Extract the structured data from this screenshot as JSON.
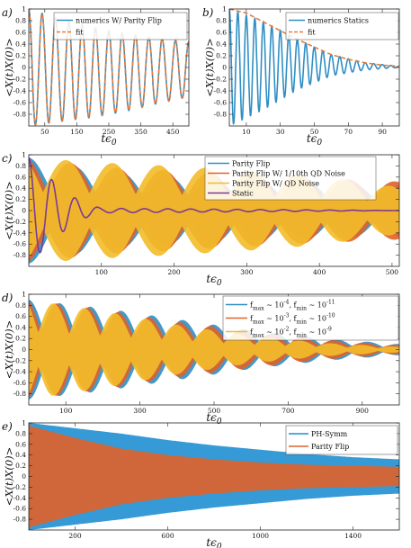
{
  "chart_data": [
    {
      "id": "a",
      "panel_label": "a)",
      "type": "line",
      "xlabel": "tϵ0",
      "ylabel": "<X(t)X(0)>",
      "xlim": [
        0,
        500
      ],
      "ylim": [
        -1,
        1
      ],
      "xticks": [
        50,
        150,
        250,
        350,
        450
      ],
      "yticks": [
        -0.8,
        -0.6,
        -0.4,
        -0.2,
        0,
        0.2,
        0.4,
        0.6,
        0.8,
        1
      ],
      "legend_position": "top-right",
      "series": [
        {
          "name": "numerics W/ Parity Flip",
          "color": "#2f8fc4",
          "style": "solid",
          "oscillations": 12,
          "envelope": {
            "x": [
              0,
              100,
              200,
              300,
              400,
              500
            ],
            "upper": [
              1.0,
              0.82,
              0.68,
              0.58,
              0.5,
              0.44
            ],
            "lower": [
              -1.0,
              -0.92,
              -0.85,
              -0.75,
              -0.62,
              -0.5
            ]
          }
        },
        {
          "name": "fit",
          "color": "#e87b3a",
          "style": "dashed",
          "oscillations": 12,
          "envelope": {
            "x": [
              0,
              100,
              200,
              300,
              400,
              500
            ],
            "upper": [
              1.0,
              0.82,
              0.68,
              0.58,
              0.5,
              0.44
            ],
            "lower": [
              -1.0,
              -0.92,
              -0.85,
              -0.75,
              -0.62,
              -0.5
            ]
          }
        }
      ]
    },
    {
      "id": "b",
      "panel_label": "b)",
      "type": "line",
      "xlabel": "tϵ0",
      "ylabel": "<X(t)X(0)>",
      "xlim": [
        0,
        100
      ],
      "ylim": [
        -1,
        1
      ],
      "xticks": [
        10,
        30,
        50,
        70,
        90
      ],
      "yticks": [
        -0.8,
        -0.6,
        -0.4,
        -0.2,
        0,
        0.2,
        0.4,
        0.6,
        0.8,
        1
      ],
      "legend_position": "top-right",
      "series": [
        {
          "name": "numerics Statics",
          "color": "#2f8fc4",
          "style": "solid",
          "oscillations": 20,
          "envelope": {
            "x": [
              0,
              20,
              40,
              60,
              80,
              100
            ],
            "upper": [
              1.0,
              0.78,
              0.48,
              0.22,
              0.08,
              0.02
            ],
            "lower": [
              -1.0,
              -0.72,
              -0.38,
              -0.14,
              -0.04,
              0.0
            ]
          }
        },
        {
          "name": "fit",
          "color": "#e87b3a",
          "style": "dashed",
          "curve": "envelope",
          "x": [
            0,
            10,
            20,
            30,
            40,
            50,
            60,
            70,
            80,
            90,
            100
          ],
          "values": [
            1.0,
            0.93,
            0.78,
            0.63,
            0.48,
            0.35,
            0.22,
            0.14,
            0.08,
            0.04,
            0.02
          ]
        }
      ]
    },
    {
      "id": "c",
      "panel_label": "c)",
      "type": "line",
      "xlabel": "tϵ0",
      "ylabel": "<X(t)X(0)>",
      "xlim": [
        0,
        510
      ],
      "ylim": [
        -1,
        1
      ],
      "xticks": [
        100,
        200,
        300,
        400,
        500
      ],
      "yticks": [
        -0.8,
        -0.6,
        -0.4,
        -0.2,
        0,
        0.2,
        0.4,
        0.6,
        0.8,
        1
      ],
      "legend_position": "top-right",
      "series": [
        {
          "name": "Parity Flip",
          "color": "#2f8fc4",
          "style": "band",
          "beats": 8,
          "envelope": {
            "x": [
              0,
              100,
              200,
              300,
              400,
              510
            ],
            "amp": [
              0.95,
              0.7,
              0.62,
              0.55,
              0.5,
              0.45
            ]
          }
        },
        {
          "name": "Parity Flip W/ 1/10th QD Noise",
          "color": "#e0622a",
          "style": "band",
          "beats": 8,
          "envelope": {
            "x": [
              0,
              100,
              200,
              300,
              400,
              510
            ],
            "amp": [
              0.95,
              0.78,
              0.72,
              0.65,
              0.58,
              0.52
            ]
          }
        },
        {
          "name": "Parity Flip W/ QD Noise",
          "color": "#f2bd2a",
          "style": "band",
          "beats": 8,
          "envelope": {
            "x": [
              0,
              100,
              200,
              300,
              400,
              510
            ],
            "amp": [
              0.95,
              0.86,
              0.8,
              0.72,
              0.62,
              0.42
            ]
          }
        },
        {
          "name": "Static",
          "color": "#7b3b96",
          "style": "solid",
          "oscillations": 16,
          "envelope": {
            "x": [
              0,
              20,
              40,
              60,
              80,
              100,
              510
            ],
            "amp": [
              0.95,
              0.7,
              0.45,
              0.25,
              0.12,
              0.04,
              0.0
            ]
          }
        }
      ]
    },
    {
      "id": "d",
      "panel_label": "d)",
      "type": "line",
      "xlabel": "tϵ0",
      "ylabel": "<X(t)X(0)>",
      "xlim": [
        0,
        1000
      ],
      "ylim": [
        -1,
        1
      ],
      "xticks": [
        100,
        300,
        500,
        700,
        900
      ],
      "yticks": [
        -0.8,
        -0.6,
        -0.4,
        -0.2,
        0,
        0.2,
        0.4,
        0.6,
        0.8,
        1
      ],
      "legend_position": "top-right",
      "series": [
        {
          "name": "f_max ~ 10^-4, f_min ~ 10^-11",
          "color": "#2f8fc4",
          "style": "band",
          "beats": 12,
          "envelope": {
            "x": [
              0,
              200,
              400,
              600,
              800,
              1000
            ],
            "amp": [
              0.9,
              0.75,
              0.55,
              0.35,
              0.2,
              0.1
            ]
          }
        },
        {
          "name": "f_max ~ 10^-3, f_min ~ 10^-10",
          "color": "#e0622a",
          "style": "band",
          "beats": 12,
          "envelope": {
            "x": [
              0,
              200,
              400,
              600,
              800,
              1000
            ],
            "amp": [
              0.9,
              0.72,
              0.5,
              0.33,
              0.18,
              0.08
            ]
          }
        },
        {
          "name": "f_max ~ 10^-2, f_min ~ 10^-9",
          "color": "#f2bd2a",
          "style": "band",
          "beats": 12,
          "envelope": {
            "x": [
              0,
              200,
              400,
              600,
              800,
              1000
            ],
            "amp": [
              0.9,
              0.7,
              0.45,
              0.25,
              0.12,
              0.05
            ]
          }
        }
      ]
    },
    {
      "id": "e",
      "panel_label": "e)",
      "type": "line",
      "xlabel": "tϵ0",
      "ylabel": "<X(t)X(0)>",
      "xlim": [
        0,
        1600
      ],
      "ylim": [
        -1,
        1
      ],
      "xticks": [
        200,
        600,
        1000,
        1400
      ],
      "yticks": [
        -0.8,
        -0.6,
        -0.4,
        -0.2,
        0,
        0.2,
        0.4,
        0.6,
        0.8,
        1
      ],
      "legend_position": "top-right",
      "series": [
        {
          "name": "PH-Symm",
          "color": "#1f8fd0",
          "style": "band",
          "envelope": {
            "x": [
              0,
              200,
              400,
              600,
              800,
              1000,
              1200,
              1400,
              1600
            ],
            "amp": [
              1.0,
              0.9,
              0.8,
              0.68,
              0.58,
              0.5,
              0.42,
              0.36,
              0.32
            ]
          }
        },
        {
          "name": "Parity Flip",
          "color": "#e0622a",
          "style": "band",
          "envelope": {
            "x": [
              0,
              200,
              400,
              600,
              800,
              1000,
              1200,
              1400,
              1600
            ],
            "amp": [
              0.95,
              0.72,
              0.52,
              0.4,
              0.32,
              0.26,
              0.22,
              0.2,
              0.18
            ]
          }
        }
      ]
    }
  ]
}
